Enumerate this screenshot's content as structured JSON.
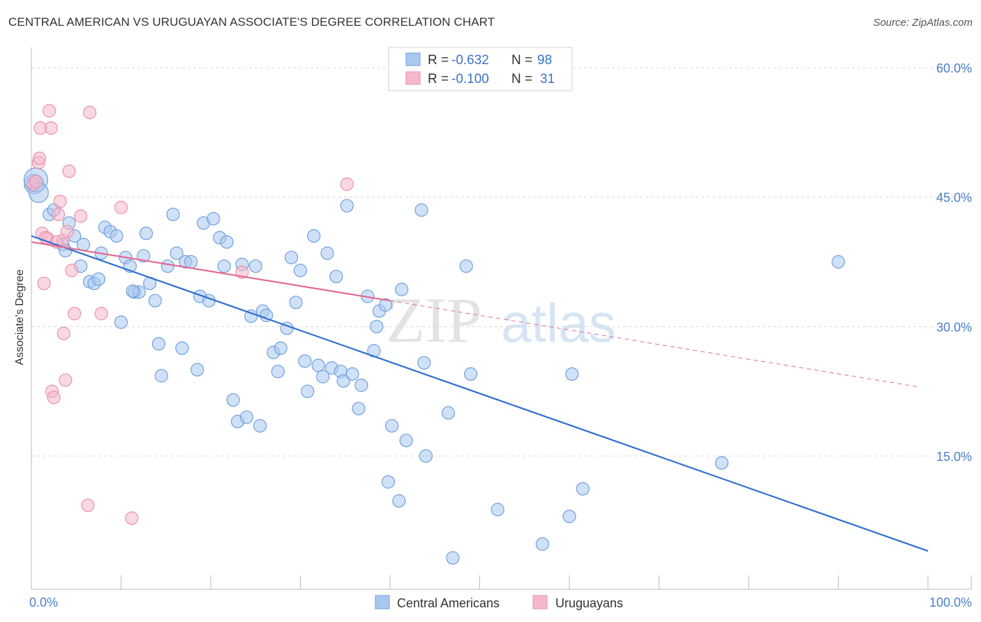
{
  "title": "CENTRAL AMERICAN VS URUGUAYAN ASSOCIATE'S DEGREE CORRELATION CHART",
  "source": "Source: ZipAtlas.com",
  "watermark": {
    "zip": "ZIP",
    "atlas": "atlas"
  },
  "colors": {
    "blue": "#2f6fd0",
    "blue_fill": "#a9c8f0",
    "pink": "#e26a95",
    "pink_fill": "#f5b8cb",
    "grid": "#d8d8d8",
    "tick_text": "#4a7fc8"
  },
  "legend": {
    "rows": [
      {
        "r_label": "R = ",
        "r_value": "-0.632",
        "n_label": "N = ",
        "n_value": "98"
      },
      {
        "r_label": "R = ",
        "r_value": "-0.100",
        "n_label": "N = ",
        "n_value": "31"
      }
    ]
  },
  "chart_data": {
    "type": "scatter",
    "title": "CENTRAL AMERICAN VS URUGUAYAN ASSOCIATE'S DEGREE CORRELATION CHART",
    "xlabel": "",
    "ylabel": "Associate's Degree",
    "xlim": [
      0,
      100
    ],
    "ylim": [
      0,
      62
    ],
    "x_tick_labels": [
      "0.0%",
      "100.0%"
    ],
    "y_ticks": [
      15,
      30,
      45,
      60
    ],
    "y_tick_labels": [
      "15.0%",
      "30.0%",
      "45.0%",
      "60.0%"
    ],
    "grid": true,
    "legend_placement": "bottom",
    "series": [
      {
        "name": "Central Americans",
        "color": "#2f6fd0",
        "trend": {
          "x": [
            0,
            100
          ],
          "y": [
            40.5,
            4.0
          ],
          "dashed_extension": false
        },
        "points": [
          [
            0.3,
            46.5
          ],
          [
            0.5,
            47.0
          ],
          [
            0.8,
            45.5
          ],
          [
            2.0,
            43.0
          ],
          [
            2.5,
            43.5
          ],
          [
            3.5,
            39.5
          ],
          [
            3.8,
            38.8
          ],
          [
            4.2,
            42.0
          ],
          [
            4.8,
            40.5
          ],
          [
            5.5,
            37.0
          ],
          [
            5.8,
            39.5
          ],
          [
            6.5,
            35.2
          ],
          [
            7.0,
            35.0
          ],
          [
            7.5,
            35.5
          ],
          [
            7.8,
            38.5
          ],
          [
            8.2,
            41.5
          ],
          [
            8.8,
            41.0
          ],
          [
            9.5,
            40.5
          ],
          [
            10.0,
            30.5
          ],
          [
            10.5,
            38.0
          ],
          [
            11.0,
            37.0
          ],
          [
            11.5,
            34.0
          ],
          [
            12.0,
            34.0
          ],
          [
            12.5,
            38.2
          ],
          [
            12.8,
            40.8
          ],
          [
            13.2,
            35.0
          ],
          [
            13.8,
            33.0
          ],
          [
            14.2,
            28.0
          ],
          [
            14.5,
            24.3
          ],
          [
            15.2,
            37.0
          ],
          [
            15.8,
            43.0
          ],
          [
            16.2,
            38.5
          ],
          [
            16.8,
            27.5
          ],
          [
            17.2,
            37.5
          ],
          [
            17.8,
            37.5
          ],
          [
            18.5,
            25.0
          ],
          [
            18.8,
            33.5
          ],
          [
            19.2,
            42.0
          ],
          [
            19.8,
            33.0
          ],
          [
            20.3,
            42.5
          ],
          [
            21.0,
            40.3
          ],
          [
            21.5,
            37.0
          ],
          [
            21.8,
            39.8
          ],
          [
            22.5,
            21.5
          ],
          [
            23.0,
            19.0
          ],
          [
            23.5,
            37.2
          ],
          [
            24.0,
            19.5
          ],
          [
            24.5,
            31.2
          ],
          [
            25.0,
            37.0
          ],
          [
            25.5,
            18.5
          ],
          [
            25.8,
            31.8
          ],
          [
            26.2,
            31.3
          ],
          [
            27.0,
            27.0
          ],
          [
            27.5,
            24.8
          ],
          [
            27.8,
            27.5
          ],
          [
            28.5,
            29.8
          ],
          [
            29.0,
            38.0
          ],
          [
            29.5,
            32.8
          ],
          [
            30.0,
            36.5
          ],
          [
            30.5,
            26.0
          ],
          [
            30.8,
            22.5
          ],
          [
            31.5,
            40.5
          ],
          [
            32.0,
            25.5
          ],
          [
            32.5,
            24.2
          ],
          [
            33.0,
            38.5
          ],
          [
            33.5,
            25.2
          ],
          [
            34.0,
            35.8
          ],
          [
            34.5,
            24.8
          ],
          [
            34.8,
            23.7
          ],
          [
            35.2,
            44.0
          ],
          [
            35.8,
            24.5
          ],
          [
            36.5,
            20.5
          ],
          [
            36.8,
            23.2
          ],
          [
            37.5,
            33.5
          ],
          [
            38.2,
            27.2
          ],
          [
            38.5,
            30.0
          ],
          [
            38.8,
            31.8
          ],
          [
            39.5,
            32.5
          ],
          [
            39.8,
            12.0
          ],
          [
            40.2,
            18.5
          ],
          [
            41.0,
            9.8
          ],
          [
            41.3,
            34.3
          ],
          [
            41.8,
            16.8
          ],
          [
            43.5,
            43.5
          ],
          [
            43.8,
            25.8
          ],
          [
            44.0,
            15.0
          ],
          [
            46.5,
            20.0
          ],
          [
            47.0,
            3.2
          ],
          [
            48.5,
            37.0
          ],
          [
            49.0,
            24.5
          ],
          [
            52.0,
            8.8
          ],
          [
            57.0,
            4.8
          ],
          [
            60.0,
            8.0
          ],
          [
            60.3,
            24.5
          ],
          [
            61.5,
            11.2
          ],
          [
            77.0,
            14.2
          ],
          [
            90.0,
            37.5
          ],
          [
            11.3,
            34.1
          ]
        ]
      },
      {
        "name": "Uruguayans",
        "color": "#e26a95",
        "trend": {
          "x": [
            0,
            40
          ],
          "y": [
            39.8,
            33.0
          ],
          "dashed_extension": true,
          "dashed_to": [
            99,
            23.0
          ]
        },
        "points": [
          [
            0.2,
            46.5
          ],
          [
            0.5,
            46.8
          ],
          [
            0.8,
            49.0
          ],
          [
            0.9,
            49.5
          ],
          [
            1.0,
            53.0
          ],
          [
            1.2,
            40.8
          ],
          [
            1.4,
            35.0
          ],
          [
            1.8,
            40.2
          ],
          [
            2.0,
            55.0
          ],
          [
            2.2,
            53.0
          ],
          [
            2.3,
            22.5
          ],
          [
            2.5,
            21.8
          ],
          [
            3.0,
            43.0
          ],
          [
            3.2,
            44.5
          ],
          [
            3.5,
            40.0
          ],
          [
            3.6,
            29.2
          ],
          [
            3.8,
            23.8
          ],
          [
            4.0,
            41.0
          ],
          [
            4.2,
            48.0
          ],
          [
            4.5,
            36.5
          ],
          [
            4.8,
            31.5
          ],
          [
            5.5,
            42.8
          ],
          [
            6.3,
            9.3
          ],
          [
            6.5,
            54.8
          ],
          [
            7.8,
            31.5
          ],
          [
            10.0,
            43.8
          ],
          [
            11.2,
            7.8
          ],
          [
            23.5,
            36.3
          ],
          [
            35.2,
            46.5
          ],
          [
            2.8,
            39.8
          ],
          [
            1.6,
            40.3
          ]
        ]
      }
    ]
  }
}
